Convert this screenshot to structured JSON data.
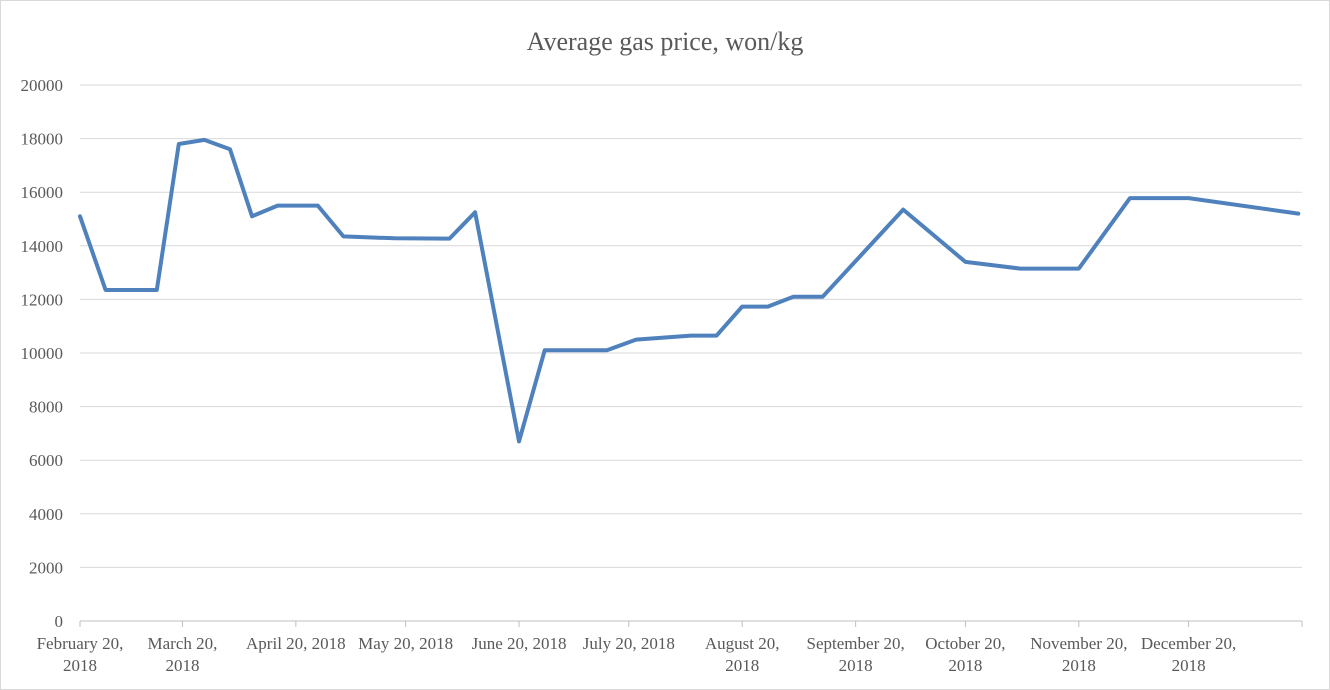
{
  "chart_data": {
    "type": "line",
    "title": "Average gas price, won/kg",
    "xlabel": "",
    "ylabel": "",
    "ylim": [
      0,
      20000
    ],
    "yticks": [
      0,
      2000,
      4000,
      6000,
      8000,
      10000,
      12000,
      14000,
      16000,
      18000,
      20000
    ],
    "xlim": [
      "2018-02-20",
      "2019-01-20"
    ],
    "x_tick_labels": [
      {
        "date": "2018-02-20",
        "lines": [
          "February 20,",
          "2018"
        ]
      },
      {
        "date": "2018-03-20",
        "lines": [
          "March 20,",
          "2018"
        ]
      },
      {
        "date": "2018-04-20",
        "lines": [
          "April 20, 2018"
        ]
      },
      {
        "date": "2018-05-20",
        "lines": [
          "May 20, 2018"
        ]
      },
      {
        "date": "2018-06-20",
        "lines": [
          "June 20, 2018"
        ]
      },
      {
        "date": "2018-07-20",
        "lines": [
          "July 20, 2018"
        ]
      },
      {
        "date": "2018-08-20",
        "lines": [
          "August 20,",
          "2018"
        ]
      },
      {
        "date": "2018-09-20",
        "lines": [
          "September 20,",
          "2018"
        ]
      },
      {
        "date": "2018-10-20",
        "lines": [
          "October 20,",
          "2018"
        ]
      },
      {
        "date": "2018-11-20",
        "lines": [
          "November 20,",
          "2018"
        ]
      },
      {
        "date": "2018-12-20",
        "lines": [
          "December 20,",
          "2018"
        ]
      }
    ],
    "grid": true,
    "color": "#4f81bd",
    "series": [
      {
        "points": [
          [
            "2018-02-20",
            15100
          ],
          [
            "2018-02-27",
            12350
          ],
          [
            "2018-03-06",
            12350
          ],
          [
            "2018-03-13",
            12350
          ],
          [
            "2018-03-19",
            17800
          ],
          [
            "2018-03-26",
            17950
          ],
          [
            "2018-04-02",
            17600
          ],
          [
            "2018-04-08",
            15100
          ],
          [
            "2018-04-15",
            15500
          ],
          [
            "2018-04-26",
            15500
          ],
          [
            "2018-05-03",
            14350
          ],
          [
            "2018-05-17",
            14280
          ],
          [
            "2018-06-01",
            14270
          ],
          [
            "2018-06-08",
            15250
          ],
          [
            "2018-06-20",
            6700
          ],
          [
            "2018-06-27",
            10100
          ],
          [
            "2018-07-14",
            10100
          ],
          [
            "2018-07-22",
            10500
          ],
          [
            "2018-08-06",
            10650
          ],
          [
            "2018-08-13",
            10650
          ],
          [
            "2018-08-20",
            11730
          ],
          [
            "2018-08-27",
            11730
          ],
          [
            "2018-09-03",
            12100
          ],
          [
            "2018-09-11",
            12100
          ],
          [
            "2018-10-03",
            15350
          ],
          [
            "2018-10-20",
            13400
          ],
          [
            "2018-11-04",
            13150
          ],
          [
            "2018-11-20",
            13150
          ],
          [
            "2018-12-04",
            15780
          ],
          [
            "2018-12-20",
            15780
          ],
          [
            "2019-01-19",
            15200
          ]
        ]
      }
    ]
  }
}
